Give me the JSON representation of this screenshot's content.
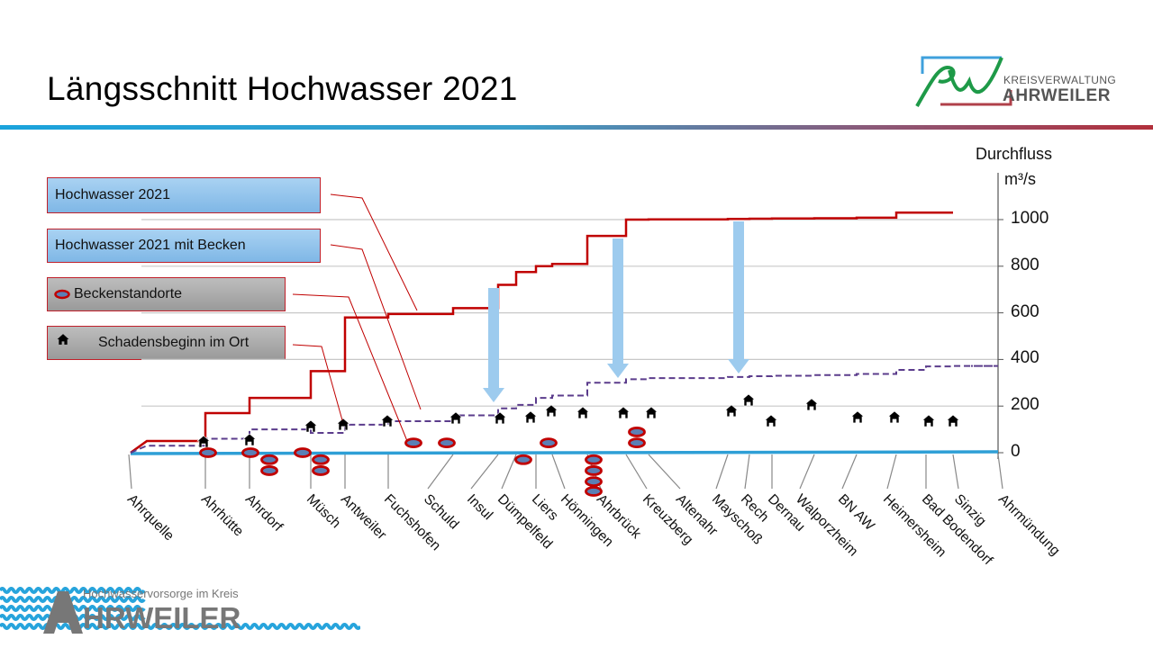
{
  "slide": {
    "title": "Längsschnitt Hochwasser 2021",
    "logo_top_line1": "KREISVERWALTUNG",
    "logo_top_line2": "AHRWEILER",
    "logo_bottom_line1": "Hochwasservorsorge im Kreis",
    "logo_bottom_line2": "AHRWEILER"
  },
  "legend": [
    {
      "label": "Hochwasser 2021",
      "icon": ""
    },
    {
      "label": "Hochwasser 2021 mit Becken",
      "icon": ""
    },
    {
      "label": "Beckenstandorte",
      "icon": "basin-ellipse-icon"
    },
    {
      "label": "Schadensbeginn im Ort",
      "icon": "house-icon"
    }
  ],
  "chart_data": {
    "type": "line",
    "ylabel_line1": "Durchfluss",
    "ylabel_line2": "m³/s",
    "ylim": [
      0,
      1000
    ],
    "yticks": [
      "0",
      "200",
      "400",
      "600",
      "800",
      "1000"
    ],
    "grid": true,
    "categories": [
      "Ahrquelle",
      "Ahrhütte",
      "Ahrdorf",
      "Müsch",
      "Antweiler",
      "Fuchshofen",
      "Schuld",
      "Insul",
      "Dümpelfeld",
      "Liers",
      "Hönningen",
      "Ahrbrück",
      "Kreuzberg",
      "Altenahr",
      "Mayschoß",
      "Rech",
      "Dernau",
      "Walporzheim",
      "BN AW",
      "Heimersheim",
      "Bad Bodendorf",
      "Sinzig",
      "Ahrmündung"
    ],
    "series": [
      {
        "name": "Hochwasser 2021",
        "style": "solid",
        "color": "#c00000",
        "values": [
          50,
          170,
          235,
          350,
          580,
          595,
          620,
          720,
          775,
          800,
          810,
          930,
          1000,
          1001,
          1003,
          1004,
          1005,
          1006,
          1008,
          1030,
          1030,
          1030,
          null
        ]
      },
      {
        "name": "Hochwasser 2021 mit Becken",
        "style": "dashed",
        "color": "#5b3c8c",
        "values": [
          30,
          60,
          100,
          85,
          120,
          135,
          160,
          190,
          205,
          235,
          245,
          300,
          315,
          320,
          325,
          328,
          330,
          333,
          338,
          355,
          370,
          372,
          372
        ]
      }
    ],
    "schadensbeginn": [
      46,
      54,
      112,
      120,
      135,
      147,
      147,
      151,
      178,
      170,
      170,
      170,
      178,
      224,
      135,
      205,
      151,
      151,
      135,
      135
    ],
    "beckenstandorte": [
      0,
      0,
      -30,
      -77,
      0,
      -30,
      -77,
      42,
      42,
      -30,
      42,
      -30,
      -77,
      -124,
      -166,
      89,
      42
    ],
    "reduction_arrows": 3,
    "colors": {
      "river": "#2e9fd6",
      "arrow": "#9dcbee",
      "basin_fill": "#5b7fb5",
      "basin_stroke": "#c00000"
    }
  }
}
